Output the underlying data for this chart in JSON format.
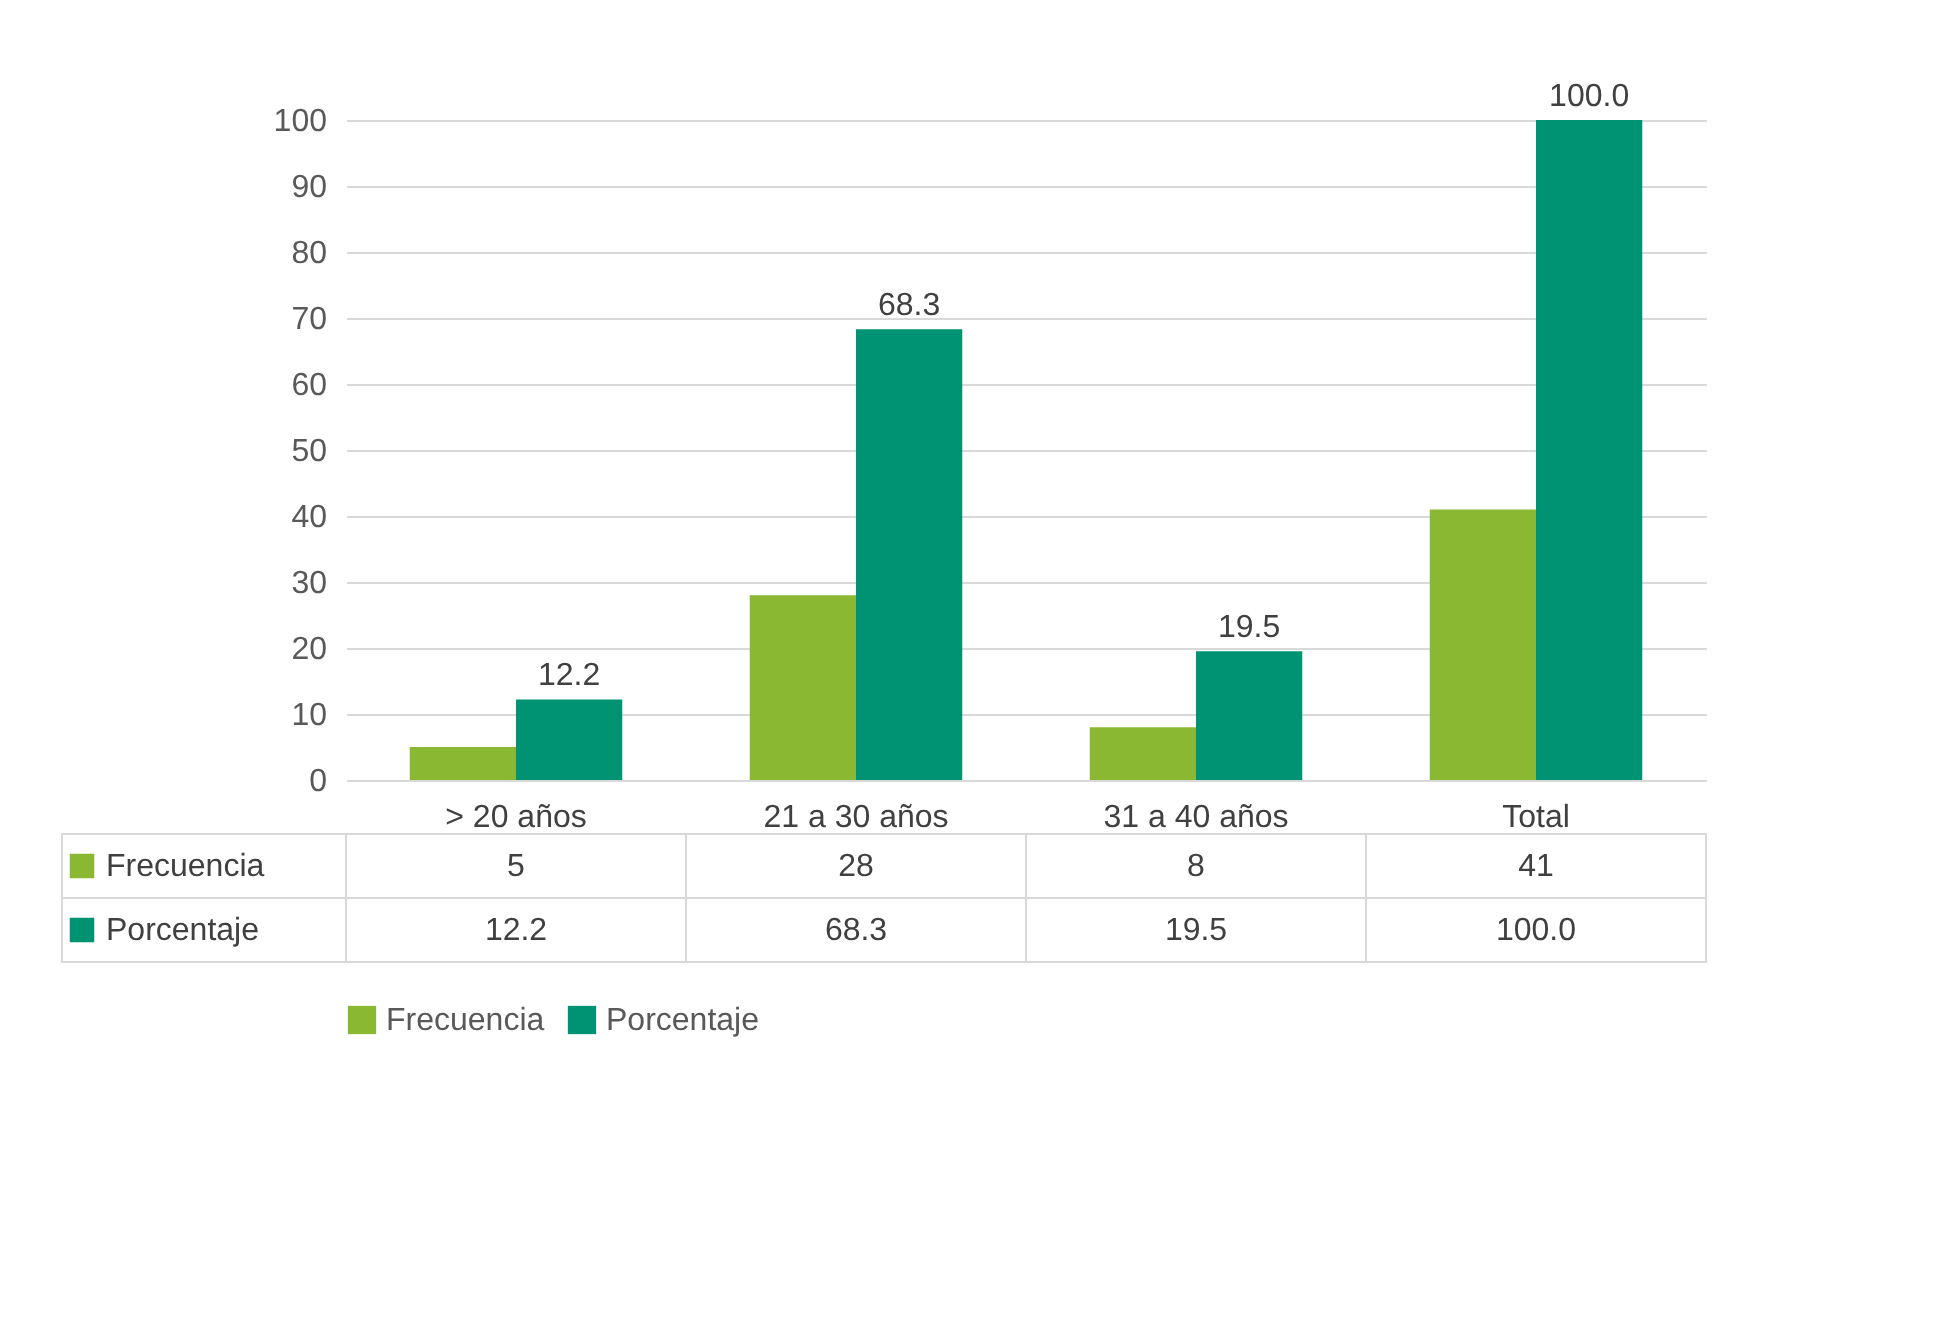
{
  "chart_data": {
    "type": "bar",
    "categories": [
      "> 20 años",
      "21 a 30 años",
      "31 a 40 años",
      "Total"
    ],
    "series": [
      {
        "name": "Frecuencia",
        "color": "#8ab833",
        "values": [
          5,
          28,
          8,
          41
        ]
      },
      {
        "name": "Porcentaje",
        "color": "#009373",
        "values": [
          12.2,
          68.3,
          19.5,
          100
        ],
        "value_labels": [
          "12.2",
          "68.3",
          "19.5",
          "100.0"
        ]
      }
    ],
    "ylim": [
      0,
      100
    ],
    "yticks": [
      0,
      10,
      20,
      30,
      40,
      50,
      60,
      70,
      80,
      90,
      100
    ],
    "grid": "y",
    "legend": "bottom",
    "data_labels": true
  }
}
